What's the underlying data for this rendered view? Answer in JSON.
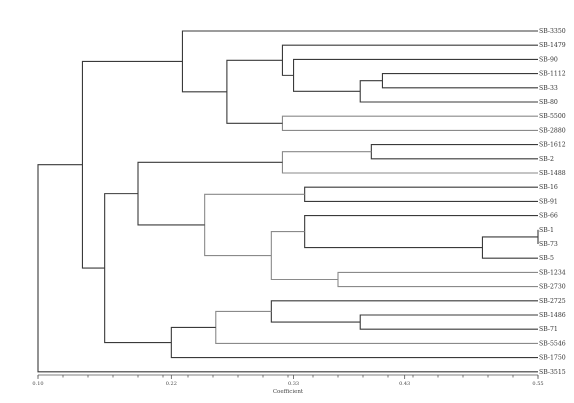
{
  "chart_data": {
    "type": "dendrogram",
    "xlabel": "Coefficient",
    "xlim": [
      0.1,
      0.55
    ],
    "x_ticks": [
      "0.10",
      "0.22",
      "0.33",
      "0.43",
      "0.55"
    ],
    "leaves": [
      "SB-3350",
      "SB-1479",
      "SB-90",
      "SB-1112",
      "SB-33",
      "SB-80",
      "SB-5500",
      "SB-2880",
      "SB-1612",
      "SB-2",
      "SB-1488",
      "SB-16",
      "SB-91",
      "SB-66",
      "SB-1",
      "SB-73",
      "SB-5",
      "SB-1234",
      "SB-2730",
      "SB-2725",
      "SB-1486",
      "SB-71",
      "SB-5546",
      "SB-1750",
      "SB-3515"
    ],
    "merges": [
      {
        "a": "SB-1",
        "b": "SB-73",
        "height": 0.55
      },
      {
        "a": "SB-1112",
        "b": "SB-33",
        "height": 0.41
      },
      {
        "a": "SB-1612",
        "b": "SB-2",
        "height": 0.4
      },
      {
        "a": "SB-5",
        "b": "c0",
        "height": 0.5
      },
      {
        "a": "c1",
        "b": "SB-80",
        "height": 0.39
      },
      {
        "a": "SB-1486",
        "b": "SB-71",
        "height": 0.39
      },
      {
        "a": "SB-1234",
        "b": "SB-2730",
        "height": 0.37
      },
      {
        "a": "SB-66",
        "b": "c3",
        "height": 0.34
      },
      {
        "a": "SB-16",
        "b": "SB-91",
        "height": 0.34
      },
      {
        "a": "SB-5500",
        "b": "SB-2880",
        "height": 0.32
      },
      {
        "a": "c2",
        "b": "SB-1488",
        "height": 0.32
      },
      {
        "a": "SB-90",
        "b": "c4",
        "height": 0.33
      },
      {
        "a": "SB-1479",
        "b": "c11",
        "height": 0.32
      },
      {
        "a": "c7",
        "b": "c6",
        "height": 0.31
      },
      {
        "a": "SB-2725",
        "b": "c5",
        "height": 0.31
      },
      {
        "a": "c12",
        "b": "c9",
        "height": 0.27
      },
      {
        "a": "c8",
        "b": "c13",
        "height": 0.25
      },
      {
        "a": "c14",
        "b": "SB-5546",
        "height": 0.26
      },
      {
        "a": "SB-3350",
        "b": "c15",
        "height": 0.23
      },
      {
        "a": "c16",
        "b": "c10",
        "height": 0.19
      },
      {
        "a": "c17",
        "b": "SB-1750",
        "height": 0.22
      },
      {
        "a": "c19",
        "b": "c20",
        "height": 0.16
      },
      {
        "a": "c18",
        "b": "c21",
        "height": 0.14
      },
      {
        "a": "c22",
        "b": "SB-3515",
        "height": 0.1
      }
    ]
  }
}
